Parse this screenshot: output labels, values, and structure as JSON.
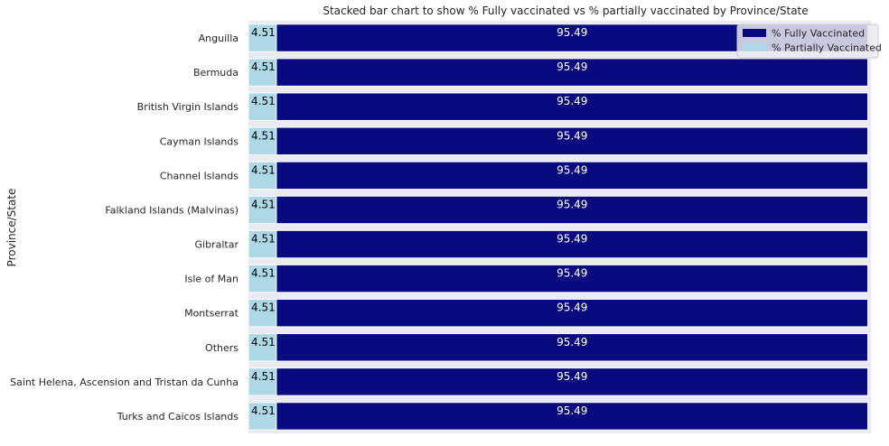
{
  "chart_data": {
    "type": "bar",
    "orientation": "horizontal",
    "stacked": true,
    "title": "Stacked bar chart to show % Fully vaccinated vs % partially vaccinated by Province/State",
    "xlabel": "",
    "ylabel": "Province/State",
    "xlim": [
      0,
      100.5
    ],
    "grid": true,
    "legend_position": "top-right",
    "categories": [
      "Anguilla",
      "Bermuda",
      "British Virgin Islands",
      "Cayman Islands",
      "Channel Islands",
      "Falkland Islands (Malvinas)",
      "Gibraltar",
      "Isle of Man",
      "Montserrat",
      "Others",
      "Saint Helena, Ascension and Tristan da Cunha",
      "Turks and Caicos Islands"
    ],
    "series": [
      {
        "name": "% Partially Vaccinated",
        "color": "#add8e6",
        "label_color": "#000000",
        "values": [
          4.51,
          4.51,
          4.51,
          4.51,
          4.51,
          4.51,
          4.51,
          4.51,
          4.51,
          4.51,
          4.51,
          4.51
        ],
        "labels": [
          "4.51",
          "4.51",
          "4.51",
          "4.51",
          "4.51",
          "4.51",
          "4.51",
          "4.51",
          "4.51",
          "4.51",
          "4.51",
          "4.51"
        ]
      },
      {
        "name": "% Fully Vaccinated",
        "color": "#0a0a80",
        "label_color": "#ffffff",
        "values": [
          95.49,
          95.49,
          95.49,
          95.49,
          95.49,
          95.49,
          95.49,
          95.49,
          95.49,
          95.49,
          95.49,
          95.49
        ],
        "labels": [
          "95.49",
          "95.49",
          "95.49",
          "95.49",
          "95.49",
          "95.49",
          "95.49",
          "95.49",
          "95.49",
          "95.49",
          "95.49",
          "95.49"
        ]
      }
    ],
    "legend_order": [
      "% Fully Vaccinated",
      "% Partially Vaccinated"
    ],
    "background_color": "#eaeaf2"
  }
}
